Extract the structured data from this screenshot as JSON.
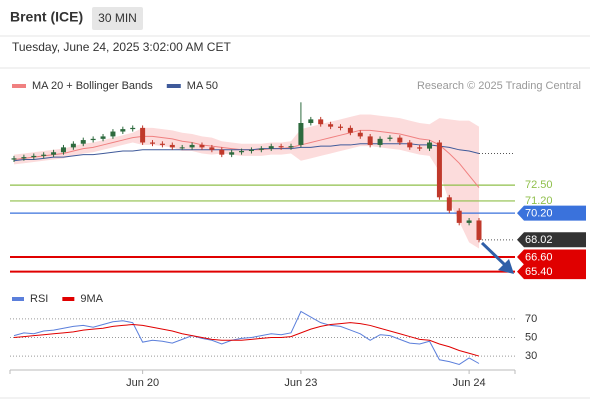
{
  "chart_data": {
    "type": "candlestick",
    "title": "Brent (ICE)",
    "interval": "30 MIN",
    "timestamp": "Tuesday, June 24, 2025 3:02:00 AM CET",
    "source": "Research © 2025 Trading Central",
    "up_color": "#2d6a3e",
    "down_color": "#c0392b",
    "candles": {
      "open": [
        74.6,
        74.7,
        74.8,
        74.9,
        75.0,
        75.2,
        75.6,
        75.9,
        76.2,
        76.3,
        76.5,
        76.9,
        77.1,
        77.2,
        76.0,
        75.9,
        75.8,
        75.6,
        75.6,
        75.8,
        75.6,
        75.4,
        75.0,
        75.2,
        75.3,
        75.4,
        75.5,
        75.7,
        75.6,
        75.8,
        77.6,
        77.9,
        77.5,
        77.3,
        77.2,
        76.8,
        76.5,
        75.8,
        76.3,
        76.4,
        76.0,
        75.6,
        75.5,
        76.0,
        71.5,
        70.4,
        69.4,
        69.6
      ],
      "high": [
        74.9,
        75.0,
        75.1,
        75.2,
        75.4,
        75.8,
        76.1,
        76.4,
        76.5,
        76.7,
        77.1,
        77.3,
        77.4,
        77.4,
        76.2,
        76.1,
        76.0,
        75.8,
        76.0,
        76.0,
        75.8,
        75.6,
        75.4,
        75.5,
        75.6,
        75.7,
        75.9,
        75.9,
        75.9,
        79.3,
        78.1,
        78.1,
        77.7,
        77.5,
        77.4,
        77.0,
        76.7,
        76.5,
        76.6,
        76.6,
        76.2,
        75.8,
        76.2,
        76.2,
        71.7,
        70.6,
        69.8,
        69.8
      ],
      "low": [
        74.4,
        74.5,
        74.6,
        74.7,
        74.8,
        75.0,
        75.4,
        75.7,
        76.0,
        76.1,
        76.3,
        76.7,
        76.9,
        75.8,
        75.7,
        75.6,
        75.4,
        75.4,
        75.4,
        75.4,
        75.2,
        74.8,
        74.8,
        75.0,
        75.1,
        75.2,
        75.3,
        75.4,
        75.4,
        75.6,
        77.4,
        77.3,
        77.1,
        77.0,
        76.6,
        76.3,
        75.6,
        75.6,
        76.1,
        75.8,
        75.4,
        75.3,
        75.3,
        71.3,
        70.2,
        69.2,
        69.2,
        67.8
      ],
      "close": [
        74.7,
        74.8,
        74.9,
        75.0,
        75.2,
        75.6,
        75.9,
        76.2,
        76.3,
        76.5,
        76.9,
        77.1,
        77.2,
        76.0,
        75.9,
        75.8,
        75.6,
        75.6,
        75.8,
        75.6,
        75.4,
        75.0,
        75.2,
        75.3,
        75.4,
        75.5,
        75.7,
        75.6,
        75.7,
        77.6,
        77.9,
        77.5,
        77.3,
        77.2,
        76.8,
        76.5,
        75.8,
        76.3,
        76.4,
        76.0,
        75.6,
        75.5,
        76.0,
        71.5,
        70.4,
        69.4,
        69.6,
        68.0
      ]
    },
    "series": [
      {
        "name": "MA 20 + Bollinger Bands",
        "color": "#f08080",
        "band_color": "#fcdcdc",
        "values": [
          74.6,
          74.7,
          74.8,
          74.9,
          75.0,
          75.1,
          75.3,
          75.5,
          75.6,
          75.8,
          76.0,
          76.2,
          76.4,
          76.5,
          76.5,
          76.4,
          76.3,
          76.1,
          76.0,
          75.8,
          75.7,
          75.6,
          75.5,
          75.4,
          75.4,
          75.4,
          75.5,
          75.5,
          75.6,
          75.8,
          76.0,
          76.2,
          76.4,
          76.6,
          76.8,
          77.0,
          77.0,
          76.9,
          76.8,
          76.7,
          76.5,
          76.3,
          76.2,
          75.8,
          75.1,
          74.3,
          73.3,
          72.3
        ],
        "upper": [
          75.0,
          75.1,
          75.2,
          75.3,
          75.4,
          75.5,
          75.7,
          75.9,
          76.0,
          76.2,
          76.4,
          76.6,
          76.8,
          77.2,
          77.2,
          77.1,
          77.0,
          76.8,
          76.7,
          76.5,
          76.4,
          76.1,
          76.0,
          75.9,
          75.9,
          75.9,
          76.0,
          76.0,
          76.1,
          77.1,
          77.3,
          77.5,
          77.7,
          77.9,
          78.1,
          78.3,
          78.3,
          78.2,
          78.1,
          78.0,
          77.8,
          77.6,
          77.5,
          78.0,
          77.9,
          77.8,
          77.8,
          77.3
        ],
        "lower": [
          74.2,
          74.3,
          74.4,
          74.5,
          74.6,
          74.7,
          74.9,
          75.1,
          75.2,
          75.4,
          75.6,
          75.8,
          76.0,
          75.8,
          75.8,
          75.7,
          75.6,
          75.3,
          75.3,
          75.1,
          75.0,
          75.1,
          75.0,
          74.9,
          74.9,
          74.9,
          75.0,
          75.0,
          75.1,
          74.5,
          74.7,
          74.9,
          75.1,
          75.3,
          75.5,
          75.7,
          75.7,
          75.6,
          75.5,
          75.4,
          75.2,
          75.0,
          74.9,
          73.6,
          71.1,
          69.5,
          67.8,
          67.3
        ]
      },
      {
        "name": "MA 50",
        "color": "#3f5a9a",
        "values": [
          74.5,
          74.6,
          74.6,
          74.7,
          74.8,
          74.8,
          74.9,
          75.0,
          75.0,
          75.1,
          75.2,
          75.3,
          75.3,
          75.4,
          75.4,
          75.4,
          75.4,
          75.4,
          75.4,
          75.4,
          75.4,
          75.4,
          75.4,
          75.4,
          75.4,
          75.5,
          75.5,
          75.5,
          75.5,
          75.6,
          75.6,
          75.7,
          75.7,
          75.8,
          75.8,
          75.9,
          75.9,
          75.9,
          75.9,
          75.9,
          75.9,
          75.8,
          75.8,
          75.7,
          75.6,
          75.4,
          75.3,
          75.1
        ]
      }
    ],
    "levels": [
      {
        "value": 72.5,
        "label": "72.50",
        "color": "#8fbf4a",
        "line": true,
        "box": false
      },
      {
        "value": 71.2,
        "label": "71.20",
        "color": "#8fbf4a",
        "line": true,
        "box": false
      },
      {
        "value": 70.2,
        "label": "70.20",
        "color": "#3a72dc",
        "line": true,
        "box": true
      },
      {
        "value": 68.02,
        "label": "68.02",
        "color": "#333333",
        "line": false,
        "box": true
      },
      {
        "value": 66.6,
        "label": "66.60",
        "color": "#e00000",
        "line": true,
        "box": true
      },
      {
        "value": 65.4,
        "label": "65.40",
        "color": "#e00000",
        "line": true,
        "box": true
      }
    ],
    "ylim": [
      64.3,
      79.9
    ],
    "xticks": [
      {
        "value": 13,
        "label": "Jun 20"
      },
      {
        "value": 29,
        "label": "Jun 23"
      },
      {
        "value": 46,
        "label": "Jun 24"
      }
    ],
    "rsi": {
      "ylim": [
        15,
        85
      ],
      "yticks": [
        30,
        50,
        70
      ],
      "series": [
        {
          "name": "RSI",
          "color": "#5b7fdb",
          "values": [
            52,
            55,
            54,
            57,
            58,
            60,
            62,
            63,
            61,
            64,
            67,
            68,
            66,
            45,
            47,
            46,
            44,
            48,
            52,
            49,
            47,
            43,
            47,
            49,
            50,
            52,
            54,
            53,
            55,
            78,
            72,
            66,
            63,
            62,
            58,
            54,
            47,
            53,
            52,
            48,
            44,
            43,
            46,
            26,
            24,
            21,
            28,
            22
          ]
        },
        {
          "name": "9MA",
          "color": "#e00000",
          "values": [
            50,
            51,
            52,
            53,
            54,
            55,
            56,
            58,
            59,
            60,
            62,
            63,
            64,
            63,
            61,
            59,
            57,
            54,
            52,
            50,
            48,
            47,
            47,
            47,
            48,
            49,
            50,
            50,
            51,
            55,
            59,
            62,
            64,
            65,
            66,
            65,
            63,
            60,
            57,
            54,
            51,
            48,
            47,
            43,
            40,
            36,
            33,
            30
          ]
        }
      ]
    }
  }
}
